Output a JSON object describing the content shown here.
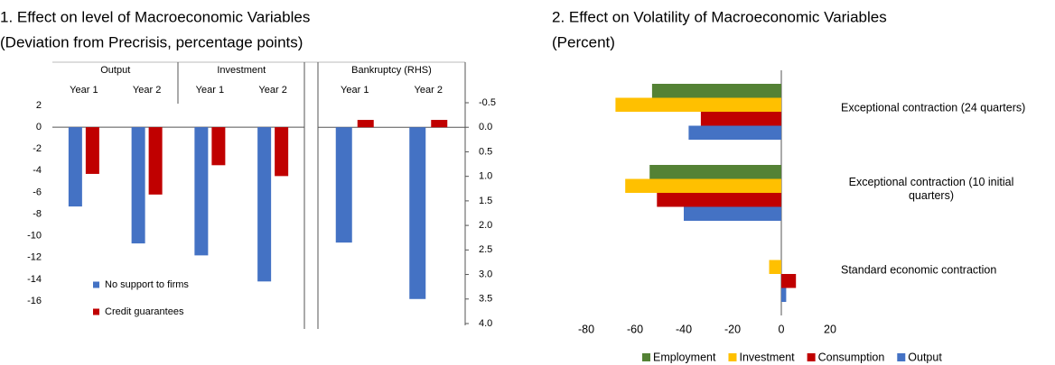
{
  "chart_data": [
    {
      "type": "bar",
      "title": "1. Effect on level of Macroeconomic Variables",
      "subtitle": "(Deviation from Precrisis, percentage points)",
      "groups": [
        "Output",
        "Investment"
      ],
      "categories": [
        "Year 1",
        "Year 2",
        "Year 1",
        "Year 2"
      ],
      "series": [
        {
          "name": "No support to firms",
          "color": "#4472c4",
          "values": [
            -7.3,
            -10.7,
            -11.8,
            -14.2
          ]
        },
        {
          "name": "Credit guarantees",
          "color": "#c00000",
          "values": [
            -4.3,
            -6.2,
            -3.5,
            -4.5
          ]
        }
      ],
      "ylim": [
        -16,
        2
      ],
      "yticks": [
        2,
        0,
        -2,
        -4,
        -6,
        -8,
        -10,
        -12,
        -14,
        -16
      ]
    },
    {
      "type": "bar",
      "groups": [
        "Bankruptcy (RHS)"
      ],
      "categories": [
        "Year 1",
        "Year 2"
      ],
      "series": [
        {
          "color": "#4472c4",
          "axis": "y2",
          "values": [
            2.35,
            3.5
          ]
        },
        {
          "color": "#c00000",
          "axis": "y2",
          "values": [
            -0.15,
            -0.15
          ]
        }
      ],
      "y2lim": [
        -0.5,
        4.0
      ],
      "y2_inverted": true,
      "y2ticks": [
        -0.5,
        {
          "value": 0,
          "label": "0.0"
        },
        0.5,
        {
          "value": 1,
          "label": "1.0"
        },
        1.5,
        {
          "value": 2,
          "label": "2.0"
        },
        2.5,
        {
          "value": 3,
          "label": "3.0"
        },
        3.5,
        {
          "value": 4,
          "label": "4.0"
        }
      ]
    },
    {
      "type": "hbar",
      "title": "2. Effect on Volatility of Macroeconomic Variables",
      "subtitle": "(Percent)",
      "categories": [
        "Exceptional contraction (24 quarters)",
        "Exceptional contraction (10 initial quarters)",
        "Standard economic contraction"
      ],
      "series": [
        {
          "name": "Employment",
          "color": "#548235",
          "values": [
            -53,
            -54,
            0
          ]
        },
        {
          "name": "Investment",
          "color": "#ffc000",
          "values": [
            -68,
            -64,
            -5
          ]
        },
        {
          "name": "Consumption",
          "color": "#c00000",
          "values": [
            -33,
            -51,
            6
          ]
        },
        {
          "name": "Output",
          "color": "#4472c4",
          "values": [
            -38,
            -40,
            2
          ]
        }
      ],
      "xlim": [
        -80,
        20
      ],
      "xticks": [
        -80,
        -60,
        -40,
        -20,
        0,
        20
      ],
      "legend": "bottom"
    }
  ]
}
